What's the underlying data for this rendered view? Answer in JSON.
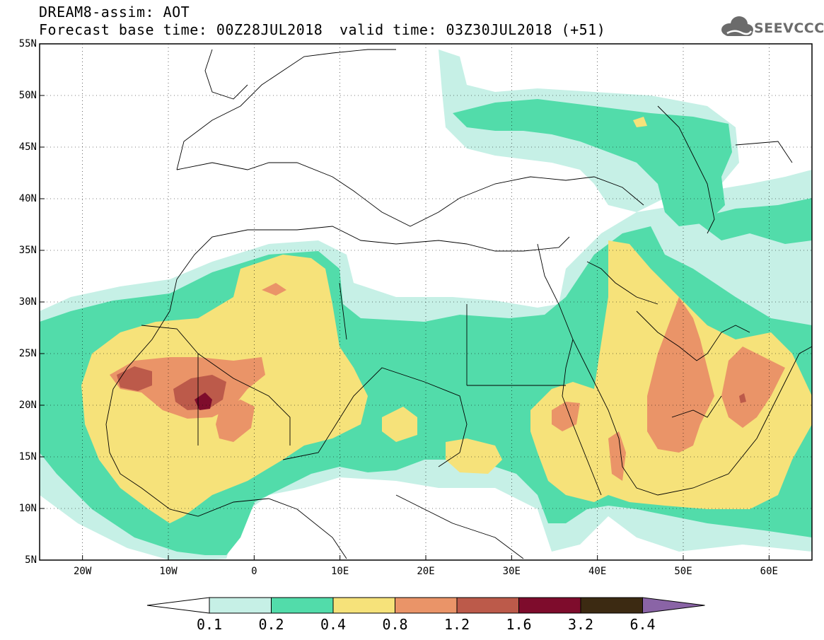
{
  "header": {
    "title_line1": "DREAM8-assim: AOT",
    "title_line2_left": "Forecast base time: 00Z28JUL2018",
    "title_line2_right": "valid time: 03Z30JUL2018 (+51)"
  },
  "logo": {
    "text": "SEEVCCC",
    "icon": "cloud-icon",
    "color": "#6b6b6b"
  },
  "map": {
    "lon_range": [
      -25,
      65
    ],
    "lat_range": [
      5,
      55
    ],
    "lat_labels": [
      "55N",
      "50N",
      "45N",
      "40N",
      "35N",
      "30N",
      "25N",
      "20N",
      "15N",
      "10N",
      "5N"
    ],
    "lon_labels": [
      "20W",
      "10W",
      "0",
      "10E",
      "20E",
      "30E",
      "40E",
      "50E",
      "60E"
    ],
    "lat_values": [
      55,
      50,
      45,
      40,
      35,
      30,
      25,
      20,
      15,
      10,
      5
    ],
    "lon_values": [
      -20,
      -10,
      0,
      10,
      20,
      30,
      40,
      50,
      60
    ]
  },
  "colorbar": {
    "labels": [
      "0.1",
      "0.2",
      "0.4",
      "0.8",
      "1.2",
      "1.6",
      "3.2",
      "6.4"
    ],
    "colors": [
      "#ffffff",
      "#c6f0e6",
      "#52dcaa",
      "#f6e27a",
      "#ea9468",
      "#bc5a4a",
      "#7e0c2c",
      "#3c2a12",
      "#8a64a6"
    ]
  }
}
